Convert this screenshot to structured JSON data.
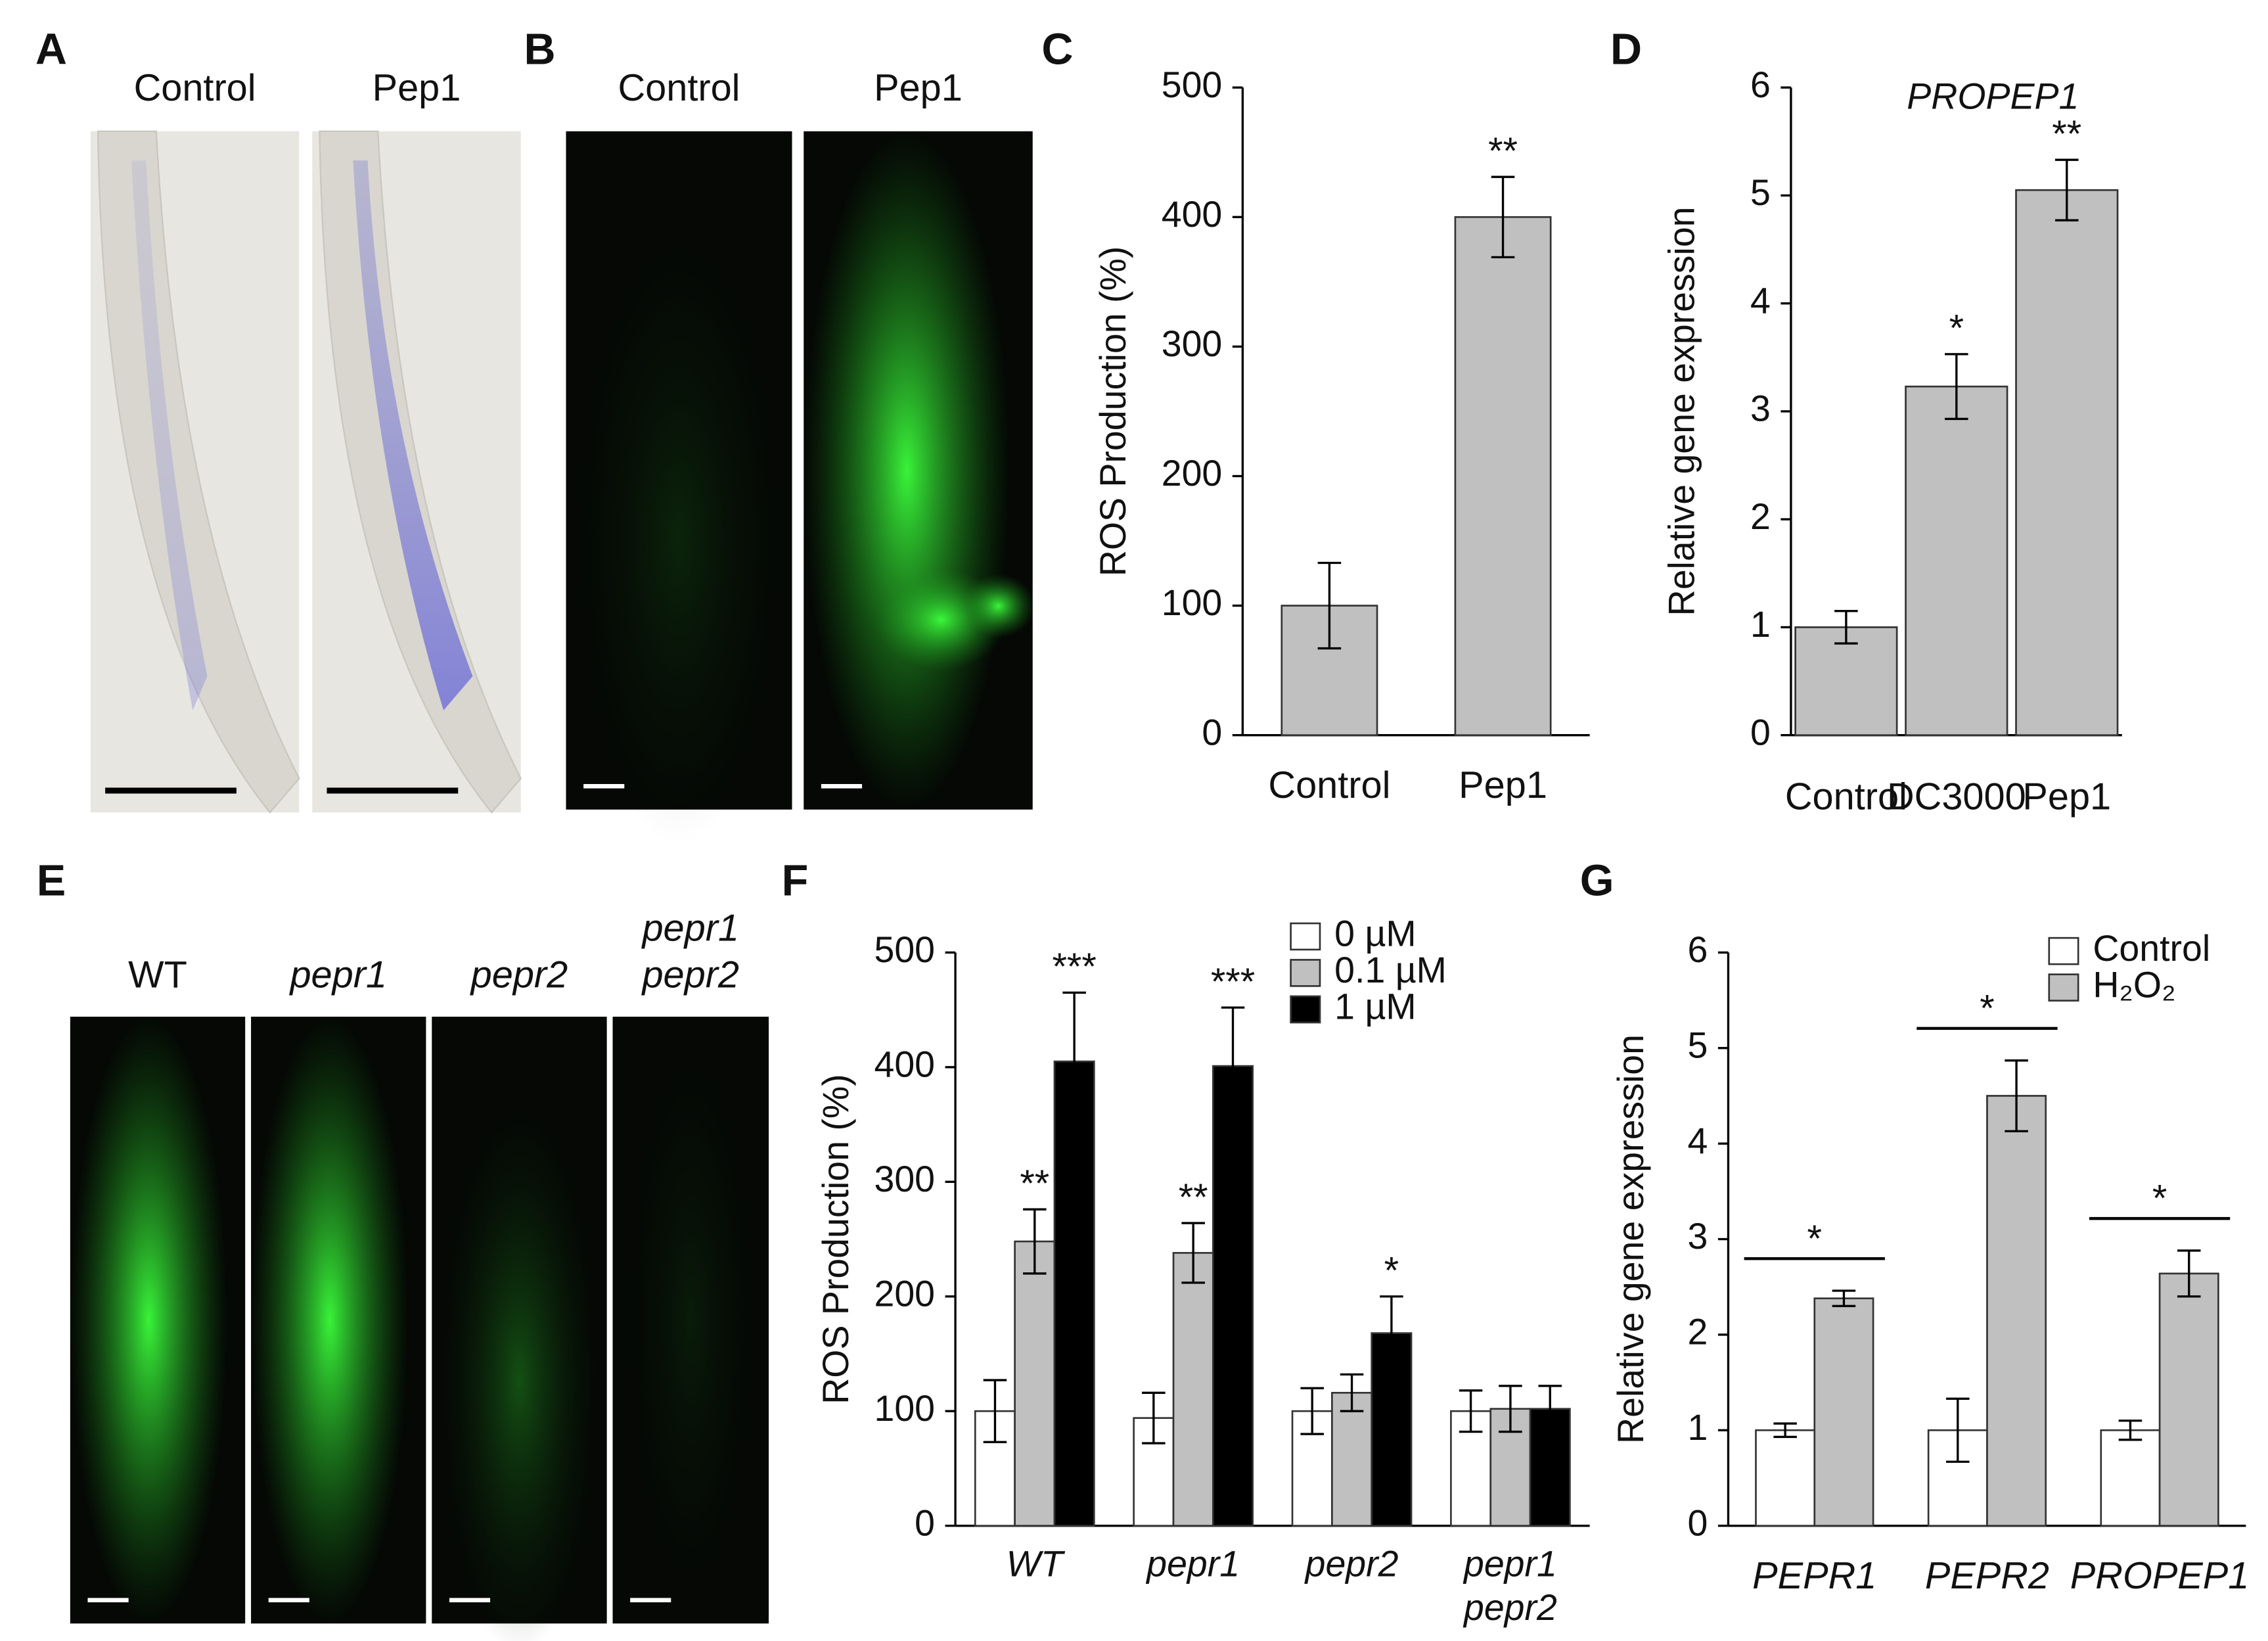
{
  "panels": [
    {
      "label": "A",
      "images": [
        [
          "Control"
        ],
        [
          "Pep1"
        ]
      ]
    },
    {
      "label": "B",
      "images": [
        [
          "Control"
        ],
        [
          "Pep1"
        ]
      ]
    },
    {
      "label": "C"
    },
    {
      "label": "D"
    },
    {
      "label": "E",
      "images": [
        [
          "WT"
        ],
        [
          "pepr1"
        ],
        [
          "pepr2"
        ],
        [
          "pepr1",
          "pepr2"
        ]
      ]
    },
    {
      "label": "F"
    },
    {
      "label": "G"
    }
  ],
  "chart_data": [
    {
      "type": "bar",
      "ylabel": "ROS Production (%)",
      "categories": [
        "Control",
        "Pep1"
      ],
      "values": [
        100,
        400
      ],
      "errors": [
        33,
        31
      ],
      "significance": [
        null,
        "**"
      ],
      "color": "#c0c0c0",
      "ylim": [
        0,
        500
      ],
      "yticks": [
        0,
        100,
        200,
        300,
        400,
        500
      ]
    },
    {
      "type": "bar",
      "title": "PROPEP1",
      "ylabel": "Relative gene expression",
      "categories": [
        "Control",
        "DC3000",
        "Pep1"
      ],
      "values": [
        1.0,
        3.23,
        5.05
      ],
      "errors": [
        0.15,
        0.3,
        0.28
      ],
      "significance": [
        null,
        "*",
        "**"
      ],
      "color": "#c0c0c0",
      "ylim": [
        0,
        6
      ],
      "yticks": [
        0,
        1,
        2,
        3,
        4,
        5,
        6
      ]
    },
    {
      "type": "grouped-bar",
      "ylabel": "ROS Production (%)",
      "categories": [
        [
          "WT"
        ],
        [
          "pepr1"
        ],
        [
          "pepr2"
        ],
        [
          "pepr1",
          "pepr2"
        ]
      ],
      "italic_categories": true,
      "legend": "upper right",
      "ylim": [
        0,
        500
      ],
      "yticks": [
        0,
        100,
        200,
        300,
        400,
        500
      ],
      "series": [
        {
          "name": "0 µM",
          "color": "#ffffff",
          "values": [
            100,
            94,
            100,
            100
          ],
          "errors": [
            27,
            22,
            20,
            18
          ],
          "significance": [
            null,
            null,
            null,
            null
          ]
        },
        {
          "name": "0.1 µM",
          "color": "#c0c0c0",
          "values": [
            248,
            238,
            116,
            102
          ],
          "errors": [
            28,
            26,
            16,
            20
          ],
          "significance": [
            "**",
            "**",
            null,
            null
          ]
        },
        {
          "name": "1 µM",
          "color": "#000000",
          "values": [
            405,
            401,
            168,
            102
          ],
          "errors": [
            60,
            51,
            32,
            20
          ],
          "significance": [
            "***",
            "***",
            "*",
            null
          ]
        }
      ]
    },
    {
      "type": "grouped-bar",
      "ylabel": "Relative gene expression",
      "categories": [
        "PEPR1",
        "PEPR2",
        "PROPEP1"
      ],
      "italic_categories": true,
      "legend": "upper right",
      "ylim": [
        0,
        6
      ],
      "yticks": [
        0,
        1,
        2,
        3,
        4,
        5,
        6
      ],
      "significance": [
        "*",
        "*",
        "*"
      ],
      "series": [
        {
          "name": "Control",
          "color": "#ffffff",
          "values": [
            1.0,
            1.0,
            1.0
          ],
          "errors": [
            0.07,
            0.33,
            0.1
          ]
        },
        {
          "name": "H₂O₂",
          "color": "#c0c0c0",
          "values": [
            2.38,
            4.5,
            2.64
          ],
          "errors": [
            0.08,
            0.37,
            0.24
          ]
        }
      ]
    }
  ]
}
